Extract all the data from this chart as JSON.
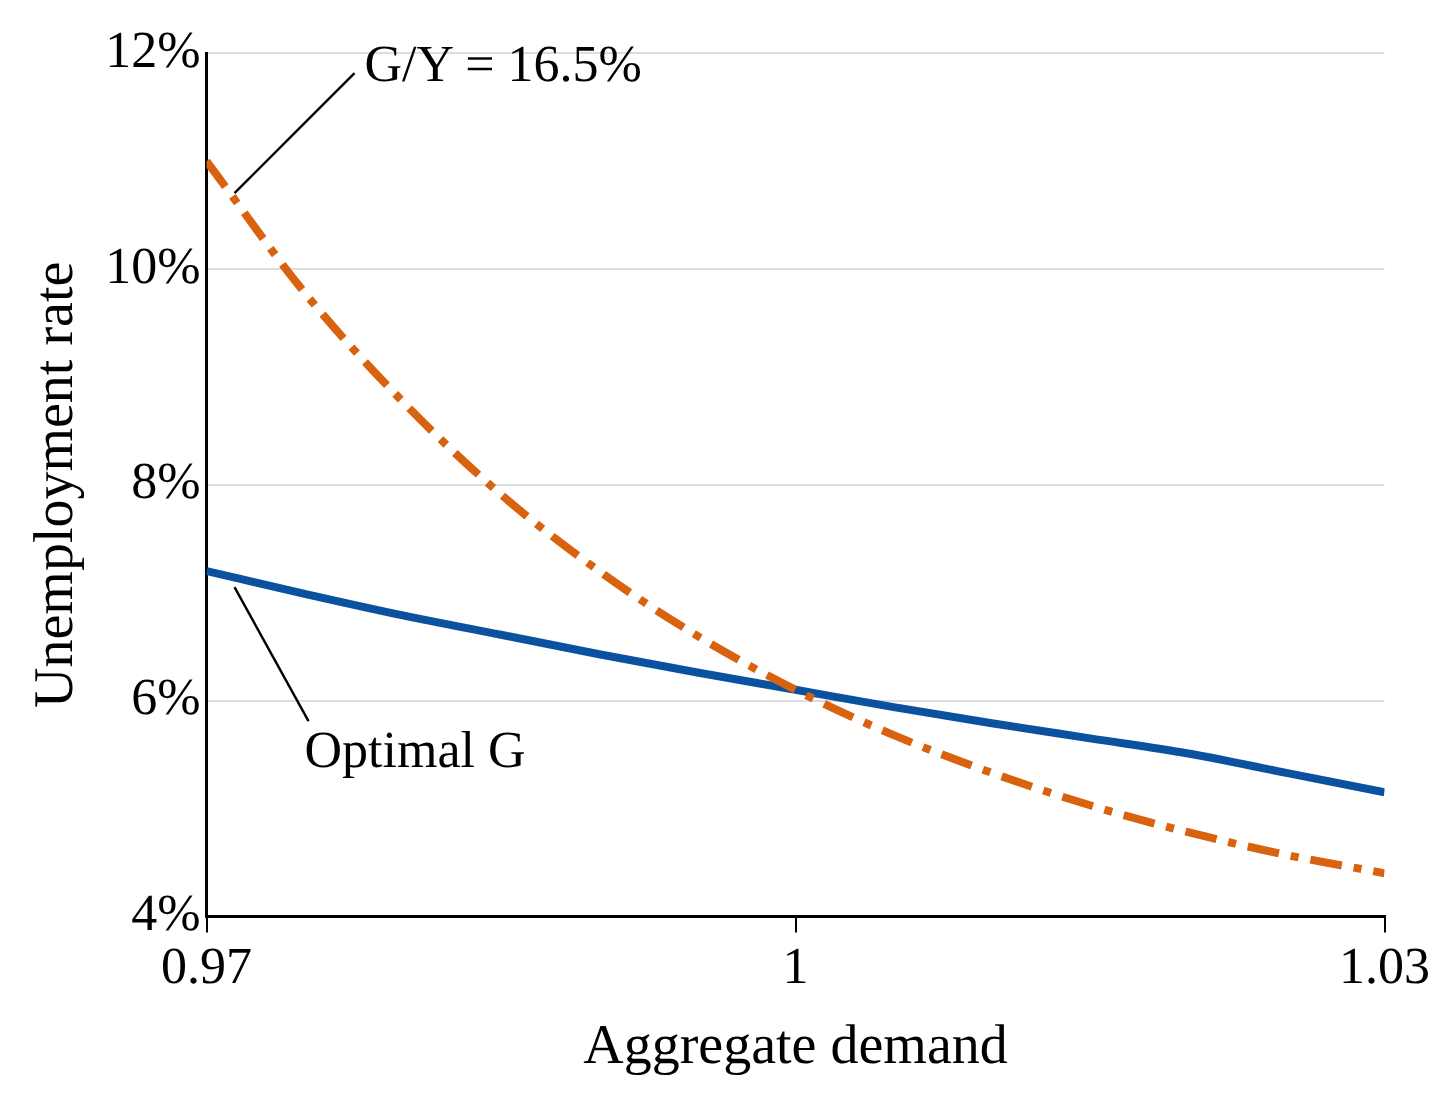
{
  "chart_data": {
    "type": "line",
    "xlabel": "Aggregate demand",
    "ylabel": "Unemployment rate",
    "x": [
      0.97,
      0.975,
      0.98,
      0.985,
      0.99,
      0.995,
      1.0,
      1.005,
      1.01,
      1.015,
      1.02,
      1.025,
      1.03
    ],
    "series": [
      {
        "name": "G/Y = 16.5%",
        "color": "#d9620f",
        "line_style": "dashed",
        "values": [
          11.0,
          9.78,
          8.77,
          7.91,
          7.2,
          6.6,
          6.1,
          5.68,
          5.33,
          5.03,
          4.78,
          4.57,
          4.4
        ]
      },
      {
        "name": "Optimal G",
        "color": "#0a52a0",
        "line_style": "solid",
        "values": [
          7.2,
          6.99,
          6.79,
          6.61,
          6.43,
          6.26,
          6.1,
          5.94,
          5.79,
          5.65,
          5.51,
          5.33,
          5.15
        ]
      }
    ],
    "xlim": [
      0.97,
      1.03
    ],
    "xticks": [
      0.97,
      1,
      1.03
    ],
    "ylim": [
      4,
      12
    ],
    "yticks": [
      {
        "value": 4,
        "label": "4%"
      },
      {
        "value": 6,
        "label": "6%"
      },
      {
        "value": 8,
        "label": "8%"
      },
      {
        "value": 10,
        "label": "10%"
      },
      {
        "value": 12,
        "label": "12%"
      }
    ],
    "grid": "y",
    "legend": false,
    "marker": "none"
  }
}
